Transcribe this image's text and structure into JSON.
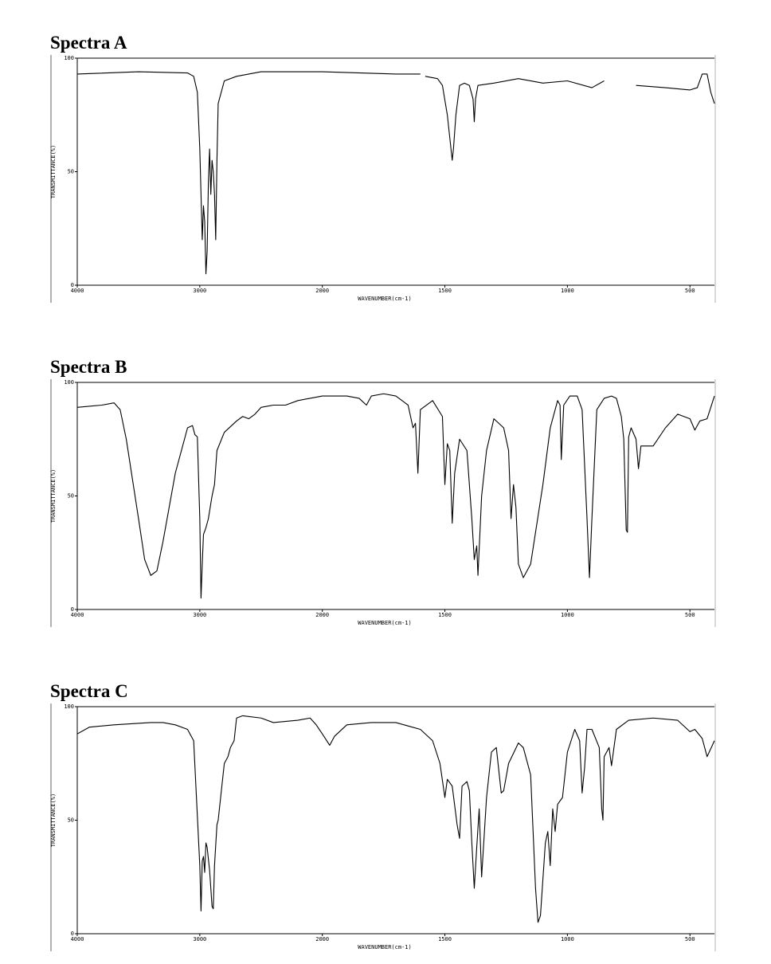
{
  "chart_data": [
    {
      "type": "line",
      "title": "Spectra A",
      "x_label": "WAVENUMBER(cm-1)",
      "y_label": "TRANSMITTANCE(%)",
      "color": "#000000",
      "xlim": [
        4000,
        400
      ],
      "xticks": [
        4000,
        3000,
        2000,
        1500,
        1000,
        500
      ],
      "ylim": [
        0,
        100
      ],
      "yticks": [
        0,
        50,
        100
      ],
      "x": [
        4000,
        3500,
        3100,
        3050,
        3020,
        3000,
        2980,
        2970,
        2960,
        2950,
        2940,
        2930,
        2920,
        2910,
        2900,
        2890,
        2880,
        2870,
        2860,
        2850,
        2800,
        2700,
        2500,
        2000,
        1700,
        1600,
        1590,
        1580,
        1530,
        1510,
        1490,
        1470,
        1465,
        1455,
        1440,
        1420,
        1400,
        1385,
        1380,
        1375,
        1365,
        1300,
        1200,
        1100,
        1000,
        900,
        850,
        800,
        720,
        600,
        500,
        470,
        450,
        430,
        415,
        400
      ],
      "values": [
        93,
        94,
        93.5,
        92,
        85,
        60,
        20,
        35,
        28,
        5,
        15,
        45,
        60,
        40,
        55,
        50,
        40,
        20,
        55,
        80,
        90,
        92,
        94,
        94,
        93,
        93,
        null,
        92,
        91,
        88,
        75,
        55,
        60,
        75,
        88,
        89,
        88,
        82,
        72,
        82,
        88,
        89,
        91,
        89,
        90,
        87,
        90,
        null,
        88,
        87,
        86,
        87,
        93,
        93,
        85,
        80
      ]
    },
    {
      "type": "line",
      "title": "Spectra B",
      "x_label": "WAVENUMBER(cm-1)",
      "y_label": "TRANSMITTANCE(%)",
      "color": "#000000",
      "xlim": [
        4000,
        400
      ],
      "xticks": [
        4000,
        3000,
        2000,
        1500,
        1000,
        500
      ],
      "ylim": [
        0,
        100
      ],
      "yticks": [
        0,
        50,
        100
      ],
      "x": [
        4000,
        3800,
        3700,
        3650,
        3600,
        3500,
        3450,
        3400,
        3350,
        3300,
        3200,
        3100,
        3060,
        3040,
        3020,
        3000,
        2990,
        2980,
        2970,
        2950,
        2930,
        2900,
        2880,
        2860,
        2800,
        2700,
        2650,
        2600,
        2550,
        2500,
        2400,
        2300,
        2200,
        2100,
        2000,
        1900,
        1850,
        1820,
        1800,
        1750,
        1700,
        1650,
        1630,
        1620,
        1610,
        1600,
        1550,
        1510,
        1500,
        1490,
        1480,
        1470,
        1460,
        1440,
        1410,
        1390,
        1380,
        1370,
        1365,
        1350,
        1330,
        1300,
        1260,
        1240,
        1230,
        1220,
        1210,
        1200,
        1180,
        1150,
        1100,
        1070,
        1040,
        1030,
        1025,
        1015,
        990,
        960,
        940,
        920,
        910,
        900,
        880,
        850,
        820,
        800,
        780,
        770,
        760,
        755,
        750,
        740,
        720,
        710,
        700,
        680,
        650,
        600,
        550,
        500,
        480,
        460,
        430,
        400
      ],
      "values": [
        89,
        90,
        91,
        88,
        75,
        40,
        22,
        15,
        17,
        30,
        60,
        80,
        81,
        77,
        76,
        40,
        5,
        20,
        33,
        36,
        40,
        50,
        55,
        70,
        78,
        83,
        85,
        84,
        86,
        89,
        90,
        90,
        92,
        93,
        94,
        94,
        93,
        90,
        94,
        95,
        94,
        90,
        80,
        82,
        60,
        88,
        92,
        85,
        55,
        73,
        70,
        38,
        60,
        75,
        70,
        40,
        22,
        28,
        15,
        50,
        70,
        84,
        80,
        70,
        40,
        55,
        45,
        20,
        14,
        20,
        55,
        80,
        92,
        90,
        66,
        90,
        94,
        94,
        88,
        40,
        14,
        40,
        88,
        93,
        94,
        93,
        85,
        75,
        35,
        34,
        76,
        80,
        75,
        62,
        72,
        72,
        72,
        80,
        86,
        84,
        79,
        83,
        84,
        94
      ]
    },
    {
      "type": "line",
      "title": "Spectra C",
      "x_label": "WAVENUMBER(cm-1)",
      "y_label": "TRANSMITTANCE(%)",
      "color": "#000000",
      "xlim": [
        4000,
        400
      ],
      "xticks": [
        4000,
        3000,
        2000,
        1500,
        1000,
        500
      ],
      "ylim": [
        0,
        100
      ],
      "yticks": [
        0,
        50,
        100
      ],
      "x": [
        4000,
        3900,
        3700,
        3400,
        3300,
        3200,
        3100,
        3050,
        3000,
        2990,
        2980,
        2970,
        2960,
        2950,
        2940,
        2920,
        2900,
        2890,
        2880,
        2860,
        2850,
        2830,
        2800,
        2770,
        2750,
        2720,
        2700,
        2650,
        2500,
        2400,
        2200,
        2100,
        2050,
        2000,
        1970,
        1950,
        1900,
        1800,
        1700,
        1600,
        1550,
        1520,
        1500,
        1490,
        1470,
        1450,
        1440,
        1430,
        1410,
        1400,
        1390,
        1380,
        1370,
        1360,
        1350,
        1330,
        1310,
        1290,
        1270,
        1260,
        1240,
        1200,
        1180,
        1150,
        1130,
        1120,
        1110,
        1090,
        1080,
        1070,
        1060,
        1050,
        1040,
        1020,
        1000,
        970,
        950,
        940,
        930,
        920,
        900,
        870,
        860,
        855,
        850,
        830,
        820,
        800,
        750,
        650,
        550,
        500,
        480,
        450,
        430,
        400
      ],
      "values": [
        88,
        91,
        92,
        93,
        93,
        92,
        90,
        85,
        30,
        10,
        32,
        34,
        27,
        40,
        38,
        28,
        12,
        11,
        30,
        48,
        50,
        60,
        75,
        78,
        82,
        85,
        95,
        96,
        95,
        93,
        94,
        95,
        92,
        88,
        83,
        87,
        92,
        93,
        93,
        90,
        85,
        75,
        60,
        68,
        65,
        48,
        42,
        65,
        67,
        63,
        40,
        20,
        38,
        55,
        25,
        60,
        80,
        82,
        62,
        63,
        75,
        84,
        82,
        70,
        20,
        5,
        8,
        40,
        45,
        30,
        55,
        45,
        57,
        60,
        80,
        90,
        85,
        62,
        73,
        90,
        90,
        82,
        55,
        50,
        78,
        82,
        74,
        90,
        94,
        95,
        94,
        89,
        90,
        86,
        78,
        85
      ]
    }
  ]
}
